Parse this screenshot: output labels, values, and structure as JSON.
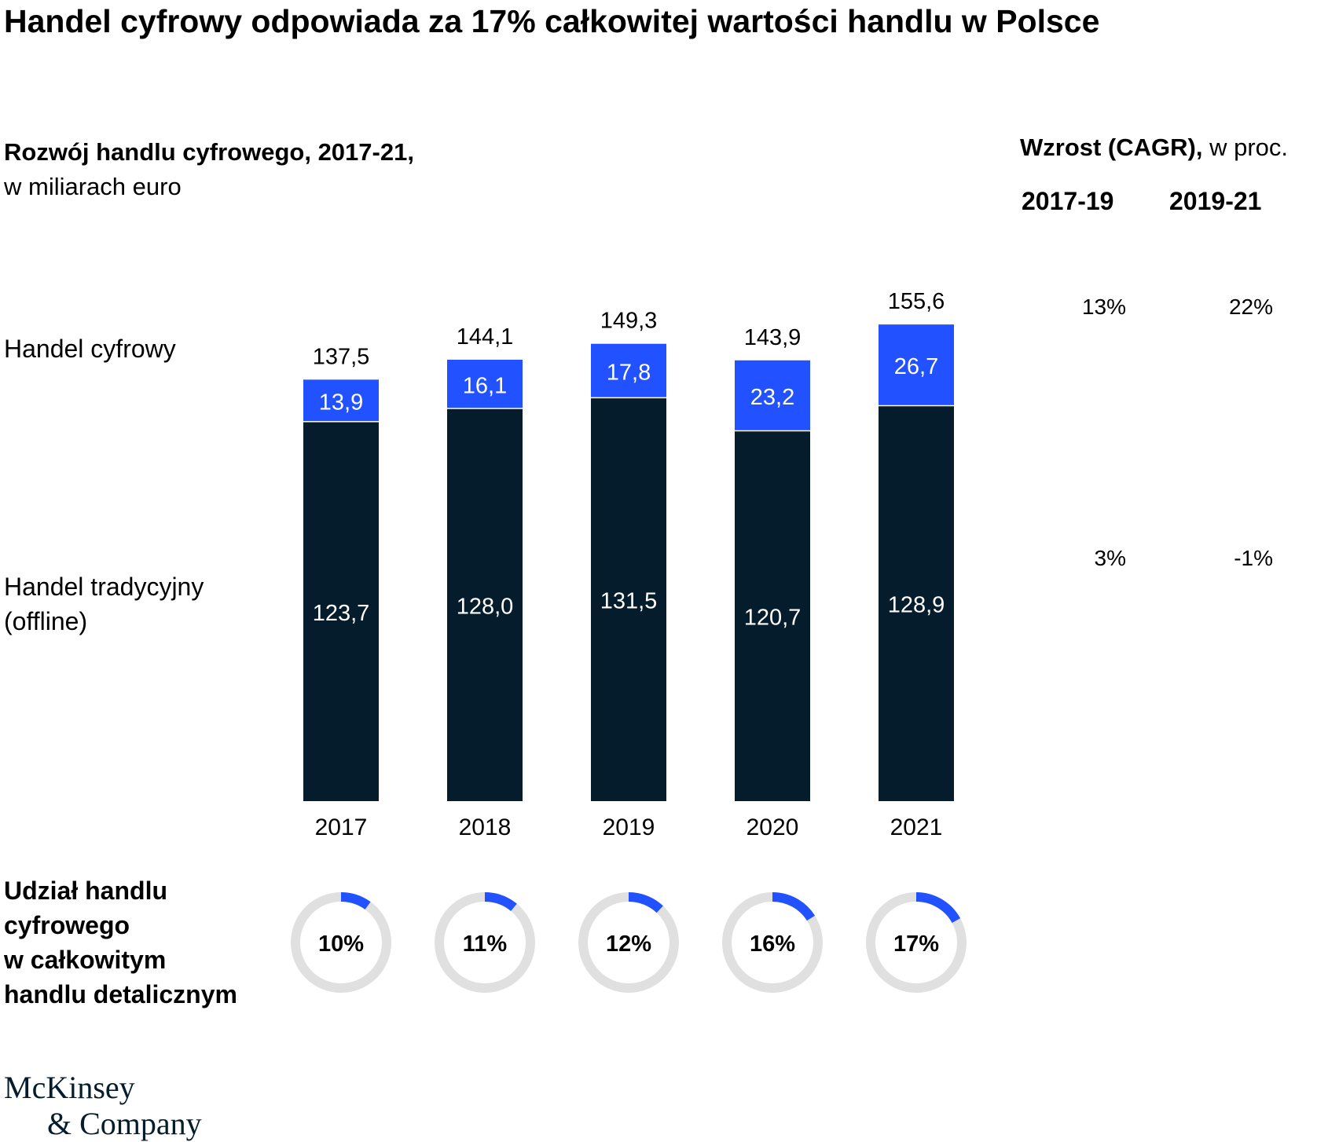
{
  "title": "Handel cyfrowy odpowiada za 17% całkowitej wartości handlu w Polsce",
  "subtitle": {
    "bold": "Rozwój handlu cyfrowego, 2017-21,",
    "normal": "w miliarach euro"
  },
  "series_labels": {
    "digital": "Handel cyfrowy",
    "offline_1": "Handel tradycyjny",
    "offline_2": "(offline)"
  },
  "cagr": {
    "title_bold": "Wzrost (CAGR),",
    "title_normal": " w proc.",
    "periods": [
      "2017-19",
      "2019-21"
    ],
    "digital": [
      "13%",
      "22%"
    ],
    "offline": [
      "3%",
      "-1%"
    ]
  },
  "share_label": {
    "line1": "Udział handlu",
    "line2": "cyfrowego",
    "line3": "w całkowitym",
    "line4": "handlu detalicznym"
  },
  "logo": {
    "line1": "McKinsey",
    "line2": "& Company"
  },
  "colors": {
    "digital": "#2251ff",
    "offline": "#051c2c",
    "ring_track": "#e0e0e0",
    "text": "#000000"
  },
  "chart_data": {
    "type": "bar",
    "stacked": true,
    "categories": [
      "2017",
      "2018",
      "2019",
      "2020",
      "2021"
    ],
    "series": [
      {
        "name": "Handel tradycyjny (offline)",
        "values": [
          123.7,
          128.0,
          131.5,
          120.7,
          128.9
        ],
        "labels": [
          "123,7",
          "128,0",
          "131,5",
          "120,7",
          "128,9"
        ]
      },
      {
        "name": "Handel cyfrowy",
        "values": [
          13.9,
          16.1,
          17.8,
          23.2,
          26.7
        ],
        "labels": [
          "13,9",
          "16,1",
          "17,8",
          "23,2",
          "26,7"
        ]
      }
    ],
    "totals": [
      137.5,
      144.1,
      149.3,
      143.9,
      155.6
    ],
    "total_labels": [
      "137,5",
      "144,1",
      "149,3",
      "143,9",
      "155,6"
    ],
    "digital_share": [
      10,
      11,
      12,
      16,
      17
    ],
    "digital_share_labels": [
      "10%",
      "11%",
      "12%",
      "16%",
      "17%"
    ]
  }
}
